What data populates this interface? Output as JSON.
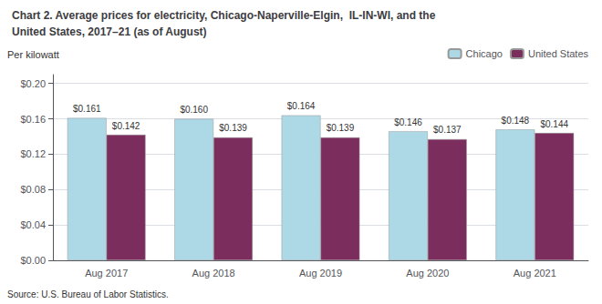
{
  "chart_data": {
    "type": "bar",
    "title": "Chart 2. Average prices for electricity, Chicago-Naperville-Elgin,  IL-IN-WI, and the",
    "subtitle": "United States, 2017–21 (as of August)",
    "ylabel": "Per kilowatt",
    "source": "Source: U.S. Bureau of Labor Statistics.",
    "categories": [
      "Aug 2017",
      "Aug 2018",
      "Aug 2019",
      "Aug 2020",
      "Aug 2021"
    ],
    "series": [
      {
        "name": "Chicago",
        "color": "#ADD8E6",
        "values": [
          0.161,
          0.16,
          0.164,
          0.146,
          0.148
        ],
        "value_labels": [
          "$0.161",
          "$0.160",
          "$0.164",
          "$0.146",
          "$0.148"
        ]
      },
      {
        "name": "United States",
        "color": "#7B2D5E",
        "values": [
          0.142,
          0.139,
          0.139,
          0.137,
          0.144
        ],
        "value_labels": [
          "$0.142",
          "$0.139",
          "$0.139",
          "$0.137",
          "$0.144"
        ]
      }
    ],
    "ylim": [
      0.0,
      0.21
    ],
    "yticks": [
      {
        "value": 0.0,
        "label": "$0.00"
      },
      {
        "value": 0.04,
        "label": "$0.04"
      },
      {
        "value": 0.08,
        "label": "$0.08"
      },
      {
        "value": 0.12,
        "label": "$0.12"
      },
      {
        "value": 0.16,
        "label": "$0.16"
      },
      {
        "value": 0.2,
        "label": "$0.20"
      }
    ],
    "grid": true,
    "legend": "upper right",
    "data_labels": true
  }
}
